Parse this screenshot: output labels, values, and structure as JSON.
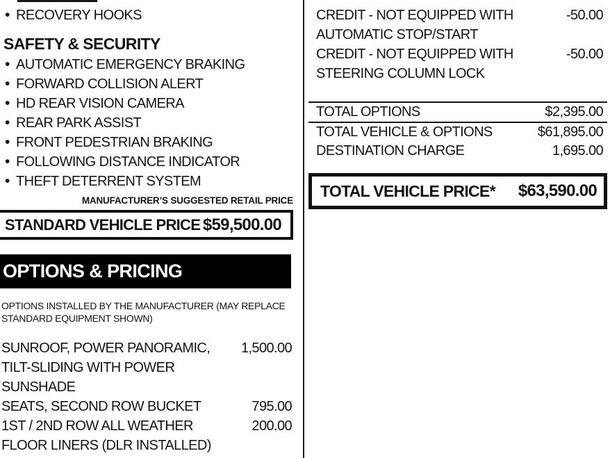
{
  "colors": {
    "ink": "#141414",
    "header_bar_bg": "#000000",
    "header_bar_text": "#ffffff"
  },
  "left": {
    "top_items": [
      "RECOVERY HOOKS"
    ],
    "section_heading": "SAFETY & SECURITY",
    "safety_items": [
      "AUTOMATIC EMERGENCY BRAKING",
      "FORWARD COLLISION ALERT",
      "HD REAR VISION CAMERA",
      "REAR PARK ASSIST",
      "FRONT PEDESTRIAN BRAKING",
      "FOLLOWING DISTANCE INDICATOR",
      "THEFT DETERRENT SYSTEM"
    ],
    "msrp_label": "MANUFACTURER’S SUGGESTED RETAIL PRICE",
    "standard_price": {
      "label": "STANDARD VEHICLE PRICE",
      "value": "$59,500.00"
    },
    "options_header": "OPTIONS & PRICING",
    "options_note": [
      "OPTIONS INSTALLED BY THE MANUFACTURER (MAY REPLACE",
      "STANDARD EQUIPMENT SHOWN)"
    ],
    "options": [
      {
        "lines": [
          "SUNROOF, POWER PANORAMIC,",
          "TILT-SLIDING WITH POWER",
          "SUNSHADE"
        ],
        "price": "1,500.00"
      },
      {
        "lines": [
          "SEATS, SECOND ROW BUCKET"
        ],
        "price": "795.00"
      },
      {
        "lines": [
          "1ST / 2ND ROW ALL WEATHER",
          "FLOOR LINERS (DLR INSTALLED)"
        ],
        "price": "200.00"
      }
    ]
  },
  "right": {
    "credits": [
      {
        "lines": [
          "CREDIT - NOT EQUIPPED WITH",
          "AUTOMATIC STOP/START"
        ],
        "price": "-50.00"
      },
      {
        "lines": [
          "CREDIT - NOT EQUIPPED WITH",
          "STEERING COLUMN LOCK"
        ],
        "price": "-50.00"
      }
    ],
    "totals": [
      {
        "label": "TOTAL OPTIONS",
        "value": "$2,395.00"
      },
      {
        "label": "TOTAL VEHICLE & OPTIONS",
        "value": "$61,895.00"
      },
      {
        "label": "DESTINATION CHARGE",
        "value": "1,695.00"
      }
    ],
    "total_price": {
      "label": "TOTAL VEHICLE PRICE*",
      "value": "$63,590.00"
    }
  }
}
